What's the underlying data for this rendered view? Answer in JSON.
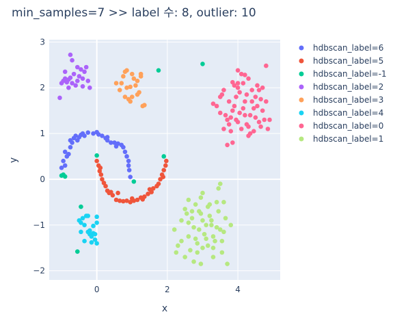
{
  "chart_data": {
    "type": "scatter",
    "title": "min_samples=7 >> label 수: 8, outlier: 10",
    "xlabel": "x",
    "ylabel": "y",
    "xlim": [
      -1.35,
      5.2
    ],
    "ylim": [
      -2.2,
      3.05
    ],
    "xticks": [
      0,
      2,
      4
    ],
    "yticks": [
      -2,
      -1,
      0,
      1,
      2,
      3
    ],
    "grid": true,
    "background": "#e5ecf6",
    "legend_placement": "right",
    "series": [
      {
        "name": "hdbscan_label=6",
        "color": "#636efa",
        "points": [
          [
            -1.0,
            0.25
          ],
          [
            -0.9,
            0.3
          ],
          [
            -0.95,
            0.4
          ],
          [
            -0.85,
            0.5
          ],
          [
            -0.8,
            0.55
          ],
          [
            -0.9,
            0.6
          ],
          [
            -0.75,
            0.7
          ],
          [
            -0.7,
            0.8
          ],
          [
            -0.75,
            0.85
          ],
          [
            -0.65,
            0.9
          ],
          [
            -0.6,
            0.95
          ],
          [
            -0.5,
            0.92
          ],
          [
            -0.45,
            0.97
          ],
          [
            -0.4,
            1.0
          ],
          [
            -0.35,
            0.95
          ],
          [
            -0.25,
            1.02
          ],
          [
            -0.1,
            1.0
          ],
          [
            0.0,
            1.03
          ],
          [
            0.05,
            0.98
          ],
          [
            0.15,
            0.95
          ],
          [
            0.25,
            0.9
          ],
          [
            0.3,
            0.85
          ],
          [
            0.4,
            0.8
          ],
          [
            0.5,
            0.8
          ],
          [
            0.6,
            0.78
          ],
          [
            0.7,
            0.75
          ],
          [
            0.75,
            0.7
          ],
          [
            0.8,
            0.6
          ],
          [
            0.85,
            0.5
          ],
          [
            0.9,
            0.4
          ],
          [
            0.9,
            0.3
          ],
          [
            0.92,
            0.2
          ],
          [
            0.95,
            0.05
          ],
          [
            0.3,
            0.92
          ],
          [
            0.55,
            0.72
          ],
          [
            -0.55,
            0.85
          ]
        ]
      },
      {
        "name": "hdbscan_label=5",
        "color": "#ef553b",
        "points": [
          [
            0.0,
            0.4
          ],
          [
            0.05,
            0.3
          ],
          [
            0.08,
            0.18
          ],
          [
            0.12,
            0.1
          ],
          [
            0.15,
            0.0
          ],
          [
            0.2,
            -0.08
          ],
          [
            0.25,
            -0.15
          ],
          [
            0.3,
            -0.25
          ],
          [
            0.35,
            -0.3
          ],
          [
            0.45,
            -0.35
          ],
          [
            0.55,
            -0.45
          ],
          [
            0.65,
            -0.47
          ],
          [
            0.75,
            -0.48
          ],
          [
            0.85,
            -0.47
          ],
          [
            0.95,
            -0.5
          ],
          [
            1.05,
            -0.47
          ],
          [
            1.15,
            -0.45
          ],
          [
            1.25,
            -0.4
          ],
          [
            1.35,
            -0.38
          ],
          [
            1.45,
            -0.32
          ],
          [
            1.55,
            -0.28
          ],
          [
            1.6,
            -0.2
          ],
          [
            1.7,
            -0.15
          ],
          [
            1.75,
            -0.1
          ],
          [
            1.8,
            0.0
          ],
          [
            1.85,
            0.1
          ],
          [
            1.9,
            0.2
          ],
          [
            1.95,
            0.3
          ],
          [
            1.97,
            0.4
          ],
          [
            0.1,
            0.25
          ],
          [
            0.4,
            -0.28
          ],
          [
            1.0,
            -0.42
          ],
          [
            1.3,
            -0.44
          ],
          [
            1.5,
            -0.22
          ],
          [
            0.6,
            -0.3
          ],
          [
            1.88,
            0.05
          ]
        ]
      },
      {
        "name": "hdbscan_label=-1",
        "color": "#00cc96",
        "points": [
          [
            -1.0,
            0.08
          ],
          [
            -0.95,
            0.1
          ],
          [
            -0.9,
            0.06
          ],
          [
            0.0,
            0.52
          ],
          [
            1.05,
            -0.05
          ],
          [
            1.9,
            0.5
          ],
          [
            -0.55,
            -1.58
          ],
          [
            -0.45,
            -0.6
          ],
          [
            1.75,
            2.38
          ],
          [
            3.0,
            2.52
          ]
        ]
      },
      {
        "name": "hdbscan_label=2",
        "color": "#ab63fa",
        "points": [
          [
            -1.0,
            2.1
          ],
          [
            -0.95,
            2.15
          ],
          [
            -0.9,
            2.2
          ],
          [
            -0.85,
            2.12
          ],
          [
            -0.8,
            2.18
          ],
          [
            -0.75,
            2.22
          ],
          [
            -0.7,
            2.1
          ],
          [
            -0.65,
            2.3
          ],
          [
            -0.6,
            2.05
          ],
          [
            -0.55,
            2.15
          ],
          [
            -0.5,
            2.25
          ],
          [
            -0.45,
            2.4
          ],
          [
            -0.4,
            2.2
          ],
          [
            -0.35,
            2.35
          ],
          [
            -0.3,
            2.45
          ],
          [
            -0.25,
            2.15
          ],
          [
            -0.2,
            2.0
          ],
          [
            -0.9,
            2.35
          ],
          [
            -0.8,
            2.0
          ],
          [
            -0.7,
            2.6
          ],
          [
            -0.75,
            2.72
          ],
          [
            -0.55,
            2.45
          ],
          [
            -0.4,
            2.03
          ],
          [
            -1.05,
            1.78
          ]
        ]
      },
      {
        "name": "hdbscan_label=3",
        "color": "#ffa15a",
        "points": [
          [
            0.7,
            2.1
          ],
          [
            0.75,
            2.25
          ],
          [
            0.8,
            2.35
          ],
          [
            0.85,
            2.0
          ],
          [
            0.9,
            1.75
          ],
          [
            0.95,
            1.7
          ],
          [
            1.0,
            2.3
          ],
          [
            1.05,
            2.2
          ],
          [
            1.1,
            2.05
          ],
          [
            1.15,
            2.15
          ],
          [
            1.2,
            1.9
          ],
          [
            1.25,
            2.25
          ],
          [
            1.3,
            1.6
          ],
          [
            1.35,
            1.62
          ],
          [
            0.65,
            1.95
          ],
          [
            0.55,
            2.1
          ],
          [
            0.85,
            2.38
          ],
          [
            1.0,
            1.8
          ],
          [
            1.15,
            1.85
          ],
          [
            0.95,
            2.02
          ],
          [
            0.8,
            1.8
          ],
          [
            1.25,
            2.3
          ]
        ]
      },
      {
        "name": "hdbscan_label=4",
        "color": "#19d3f3",
        "points": [
          [
            -0.5,
            -0.9
          ],
          [
            -0.45,
            -0.95
          ],
          [
            -0.4,
            -0.85
          ],
          [
            -0.35,
            -1.0
          ],
          [
            -0.3,
            -0.8
          ],
          [
            -0.25,
            -1.15
          ],
          [
            -0.2,
            -1.2
          ],
          [
            -0.15,
            -1.25
          ],
          [
            -0.1,
            -1.18
          ],
          [
            -0.05,
            -1.2
          ],
          [
            0.0,
            -0.95
          ],
          [
            -0.05,
            -1.32
          ],
          [
            -0.15,
            -1.38
          ],
          [
            -0.35,
            -1.35
          ],
          [
            0.0,
            -1.4
          ],
          [
            -0.25,
            -0.8
          ],
          [
            -0.1,
            -1.02
          ],
          [
            -0.45,
            -1.15
          ],
          [
            -0.2,
            -1.12
          ],
          [
            0.0,
            -0.82
          ]
        ]
      },
      {
        "name": "hdbscan_label=0",
        "color": "#ff6692",
        "points": [
          [
            3.3,
            1.65
          ],
          [
            3.4,
            1.6
          ],
          [
            3.5,
            1.8
          ],
          [
            3.55,
            1.85
          ],
          [
            3.6,
            1.95
          ],
          [
            3.65,
            1.4
          ],
          [
            3.7,
            1.3
          ],
          [
            3.75,
            1.2
          ],
          [
            3.8,
            1.05
          ],
          [
            3.85,
            1.5
          ],
          [
            3.9,
            1.6
          ],
          [
            3.95,
            1.8
          ],
          [
            4.0,
            2.0
          ],
          [
            4.05,
            1.9
          ],
          [
            4.1,
            2.3
          ],
          [
            4.15,
            2.1
          ],
          [
            4.2,
            1.4
          ],
          [
            4.25,
            1.2
          ],
          [
            4.3,
            1.15
          ],
          [
            4.35,
            1.0
          ],
          [
            4.4,
            1.7
          ],
          [
            4.45,
            1.55
          ],
          [
            4.5,
            1.35
          ],
          [
            4.55,
            1.6
          ],
          [
            4.6,
            1.25
          ],
          [
            4.65,
            1.15
          ],
          [
            4.7,
            1.5
          ],
          [
            4.75,
            1.3
          ],
          [
            4.8,
            1.7
          ],
          [
            4.85,
            1.1
          ],
          [
            3.5,
            1.45
          ],
          [
            3.6,
            1.1
          ],
          [
            3.7,
            0.75
          ],
          [
            3.85,
            0.8
          ],
          [
            4.0,
            1.25
          ],
          [
            4.1,
            1.1
          ],
          [
            4.2,
            1.7
          ],
          [
            4.3,
            2.2
          ],
          [
            4.4,
            1.95
          ],
          [
            4.55,
            2.05
          ],
          [
            4.6,
            1.95
          ],
          [
            4.7,
            2.0
          ],
          [
            4.0,
            2.1
          ],
          [
            3.9,
            2.05
          ],
          [
            4.25,
            1.85
          ],
          [
            4.15,
            1.55
          ],
          [
            3.95,
            1.3
          ],
          [
            4.45,
            1.05
          ],
          [
            4.3,
            0.95
          ],
          [
            3.8,
            1.35
          ],
          [
            4.5,
            1.8
          ],
          [
            4.35,
            1.4
          ],
          [
            4.05,
            1.45
          ],
          [
            4.65,
            1.75
          ],
          [
            3.75,
            1.7
          ],
          [
            4.8,
            2.48
          ],
          [
            4.0,
            2.38
          ],
          [
            3.85,
            2.12
          ],
          [
            4.2,
            2.28
          ],
          [
            4.9,
            1.3
          ]
        ]
      },
      {
        "name": "hdbscan_label=1",
        "color": "#b6e880",
        "points": [
          [
            2.2,
            -1.1
          ],
          [
            2.3,
            -1.45
          ],
          [
            2.4,
            -0.9
          ],
          [
            2.5,
            -0.65
          ],
          [
            2.55,
            -0.75
          ],
          [
            2.6,
            -1.25
          ],
          [
            2.65,
            -1.55
          ],
          [
            2.7,
            -0.85
          ],
          [
            2.75,
            -1.05
          ],
          [
            2.8,
            -1.3
          ],
          [
            2.85,
            -1.4
          ],
          [
            2.9,
            -0.7
          ],
          [
            2.95,
            -0.4
          ],
          [
            3.0,
            -0.9
          ],
          [
            3.05,
            -1.2
          ],
          [
            3.1,
            -1.3
          ],
          [
            3.15,
            -0.6
          ],
          [
            3.2,
            -0.8
          ],
          [
            3.25,
            -1.0
          ],
          [
            3.3,
            -1.25
          ],
          [
            3.35,
            -1.35
          ],
          [
            3.4,
            -0.5
          ],
          [
            3.45,
            -0.7
          ],
          [
            3.5,
            -1.1
          ],
          [
            3.55,
            -1.35
          ],
          [
            3.6,
            -1.15
          ],
          [
            3.65,
            -0.85
          ],
          [
            2.25,
            -1.6
          ],
          [
            2.5,
            -1.7
          ],
          [
            2.75,
            -1.8
          ],
          [
            2.95,
            -1.85
          ],
          [
            3.3,
            -1.7
          ],
          [
            3.7,
            -1.85
          ],
          [
            3.5,
            -0.1
          ],
          [
            3.0,
            -0.3
          ],
          [
            2.8,
            -0.55
          ],
          [
            2.6,
            -0.95
          ],
          [
            3.1,
            -1.0
          ],
          [
            3.2,
            -0.55
          ],
          [
            3.4,
            -1.05
          ],
          [
            2.9,
            -1.1
          ],
          [
            3.0,
            -1.5
          ],
          [
            3.3,
            -1.5
          ],
          [
            3.6,
            -0.5
          ],
          [
            2.7,
            -0.7
          ],
          [
            3.8,
            -1.0
          ],
          [
            3.15,
            -1.45
          ],
          [
            2.95,
            -0.75
          ],
          [
            2.4,
            -1.35
          ],
          [
            3.45,
            -0.2
          ],
          [
            2.6,
            -0.45
          ],
          [
            3.25,
            -0.9
          ],
          [
            2.85,
            -1.6
          ],
          [
            3.55,
            -1.6
          ]
        ]
      }
    ]
  }
}
